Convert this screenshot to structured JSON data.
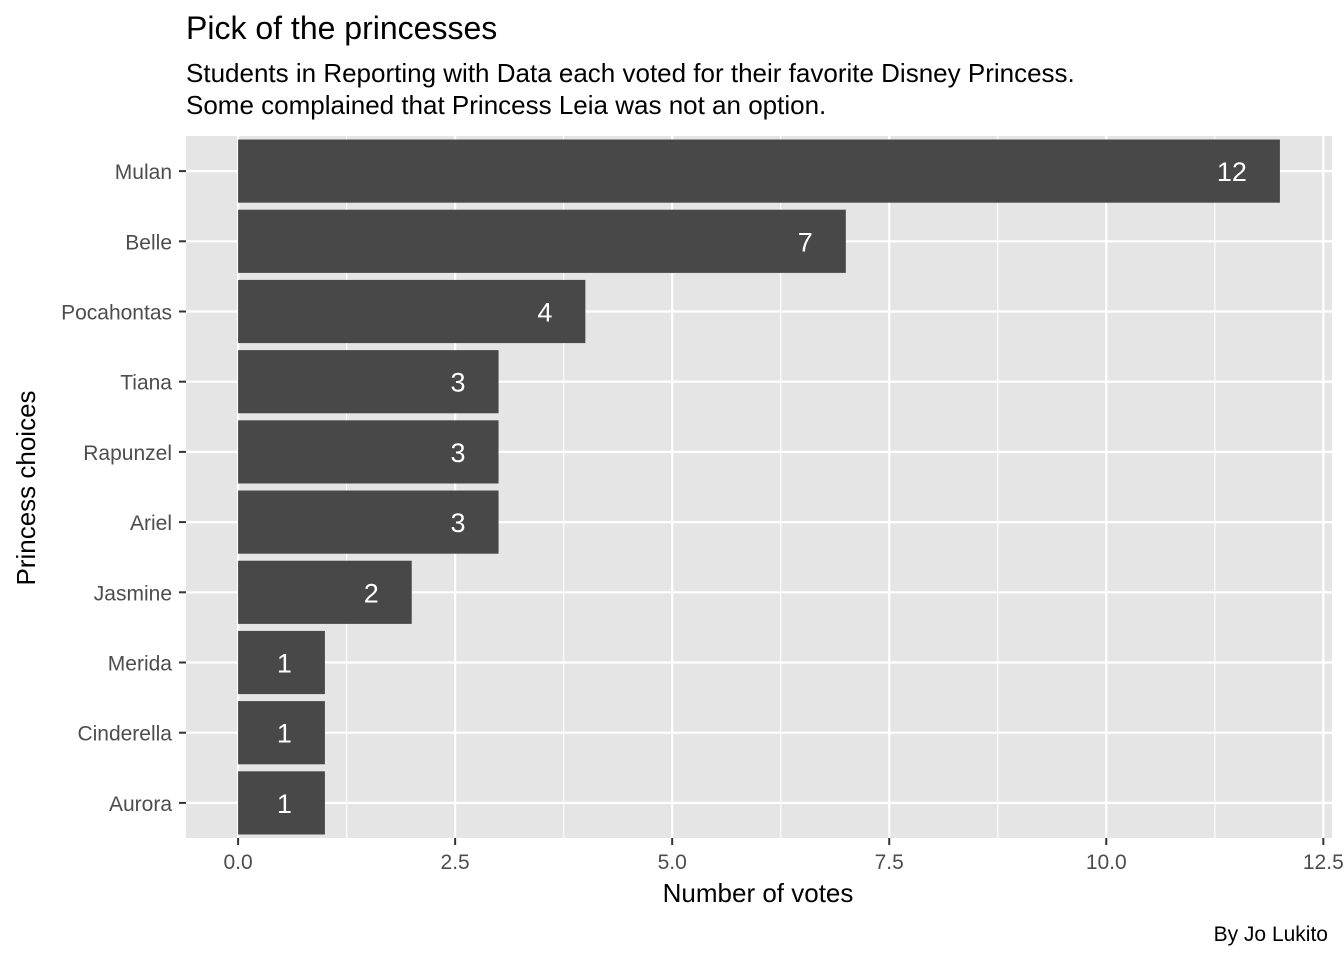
{
  "chart_data": {
    "type": "bar",
    "orientation": "horizontal",
    "title": "Pick of the princesses",
    "subtitle": [
      "Students in Reporting with Data each voted for their favorite Disney Princess.",
      "Some complained that Princess Leia was not an option."
    ],
    "xlabel": "Number of votes",
    "ylabel": "Princess choices",
    "caption": "By Jo Lukito",
    "categories": [
      "Mulan",
      "Belle",
      "Pocahontas",
      "Tiana",
      "Rapunzel",
      "Ariel",
      "Jasmine",
      "Merida",
      "Cinderella",
      "Aurora"
    ],
    "values": [
      12,
      7,
      4,
      3,
      3,
      3,
      2,
      1,
      1,
      1
    ],
    "xlim": [
      -0.6,
      12.6
    ],
    "x_ticks": [
      0,
      2.5,
      5,
      7.5,
      10,
      12.5
    ],
    "x_tick_labels": [
      "0.0",
      "2.5",
      "5.0",
      "7.5",
      "10.0",
      "12.5"
    ],
    "grid": true,
    "colors": {
      "bar": "#484848",
      "panel": "#e5e5e5",
      "grid": "#ffffff",
      "bar_label": "#ffffff"
    }
  }
}
